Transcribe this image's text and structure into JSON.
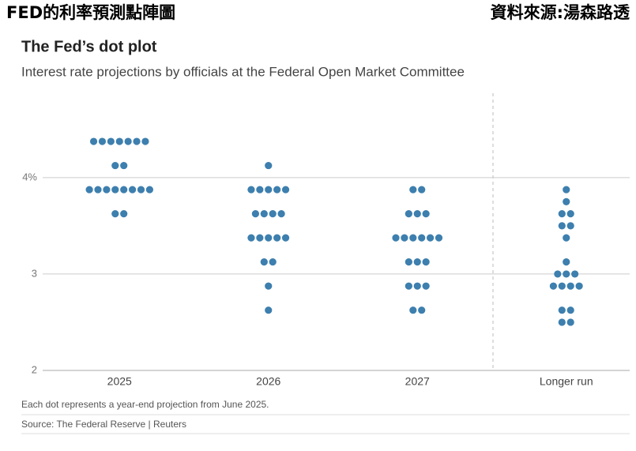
{
  "header": {
    "left": "FED的利率預測點陣圖",
    "right": "資料來源:湯森路透"
  },
  "chart_data": {
    "type": "dot",
    "title": "The Fed’s dot plot",
    "subtitle": "Interest rate projections by officials at the Federal Open Market Committee",
    "categories": [
      "2025",
      "2026",
      "2027",
      "Longer run"
    ],
    "values": [
      [
        4.375,
        4.375,
        4.375,
        4.375,
        4.375,
        4.375,
        4.375,
        4.125,
        4.125,
        3.875,
        3.875,
        3.875,
        3.875,
        3.875,
        3.875,
        3.875,
        3.875,
        3.625,
        3.625
      ],
      [
        4.125,
        3.875,
        3.875,
        3.875,
        3.875,
        3.875,
        3.625,
        3.625,
        3.625,
        3.625,
        3.375,
        3.375,
        3.375,
        3.375,
        3.375,
        3.125,
        3.125,
        2.875,
        2.625
      ],
      [
        3.875,
        3.875,
        3.625,
        3.625,
        3.625,
        3.375,
        3.375,
        3.375,
        3.375,
        3.375,
        3.375,
        3.125,
        3.125,
        3.125,
        2.875,
        2.875,
        2.875,
        2.625,
        2.625
      ],
      [
        3.875,
        3.75,
        3.625,
        3.625,
        3.5,
        3.5,
        3.375,
        3.125,
        3.0,
        3.0,
        3.0,
        2.875,
        2.875,
        2.875,
        2.875,
        2.625,
        2.625,
        2.5,
        2.5
      ]
    ],
    "color": "#3d7fae",
    "ylim": [
      2,
      4.875
    ],
    "yticks": [
      2,
      3,
      {
        "value": 4,
        "label": "4%"
      }
    ],
    "grid": true,
    "footnote": "Each dot represents a year-end projection from June 2025.",
    "source": "Source: The Federal Reserve | Reuters"
  }
}
